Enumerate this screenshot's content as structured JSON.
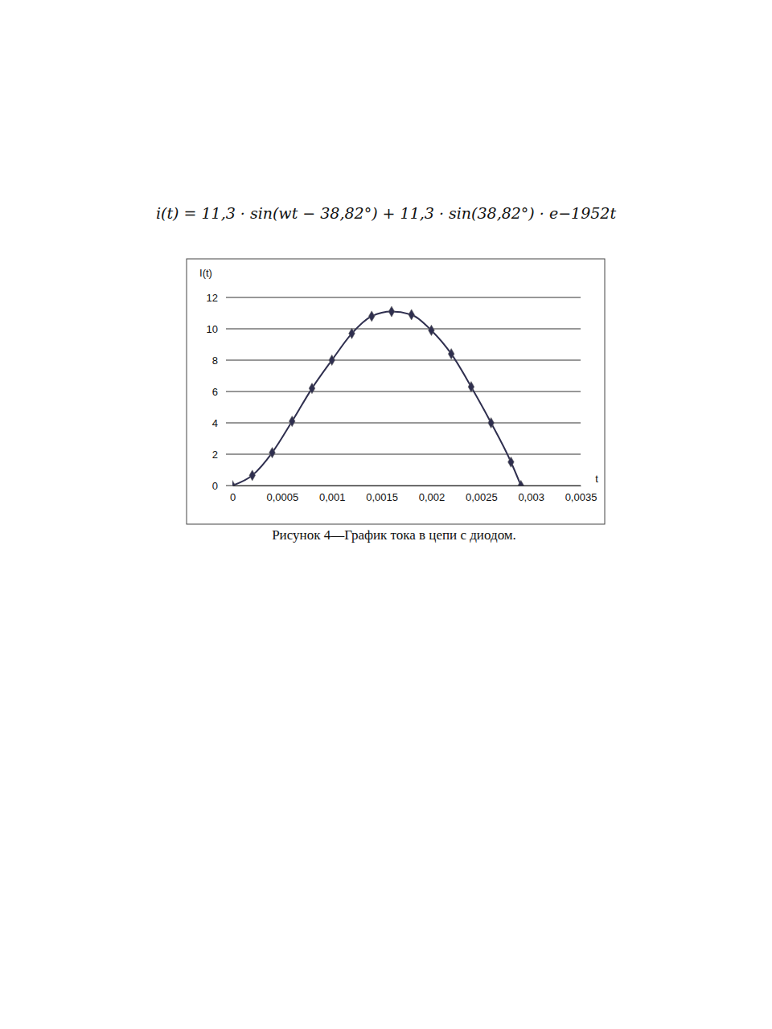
{
  "chart_data": {
    "type": "line",
    "title": "i(t) = 11,3 · sin(wt − 38,82°) + 11,3 · sin(38,82°) · e−1952t",
    "x_label": "t",
    "y_label": "I(t)",
    "annotations": [
      "Рисунок 4—График тока в цепи с диодом."
    ],
    "x": [
      0,
      0.0002,
      0.0004,
      0.0006,
      0.0008,
      0.001,
      0.0012,
      0.0014,
      0.0016,
      0.0018,
      0.002,
      0.0022,
      0.0024,
      0.0026,
      0.0028,
      0.0029
    ],
    "values": [
      0,
      0.65,
      2.1,
      4.1,
      6.2,
      8.0,
      9.7,
      10.8,
      11.1,
      10.9,
      9.9,
      8.4,
      6.3,
      4.0,
      1.5,
      0
    ],
    "color": "#2f2f4f",
    "marker": "diamond",
    "grid": true,
    "xlim": [
      0,
      0.0035
    ],
    "xticks": [
      0,
      {
        "value": 0.0005,
        "label": "0,0005"
      },
      {
        "value": 0.001,
        "label": "0,001"
      },
      {
        "value": 0.0015,
        "label": "0,0015"
      },
      {
        "value": 0.002,
        "label": "0,002"
      },
      {
        "value": 0.0025,
        "label": "0,0025"
      },
      {
        "value": 0.003,
        "label": "0,003"
      },
      {
        "value": 0.0035,
        "label": "0,0035"
      }
    ],
    "ylim": [
      0,
      12
    ],
    "yticks": [
      0,
      2,
      4,
      6,
      8,
      10,
      12
    ]
  }
}
